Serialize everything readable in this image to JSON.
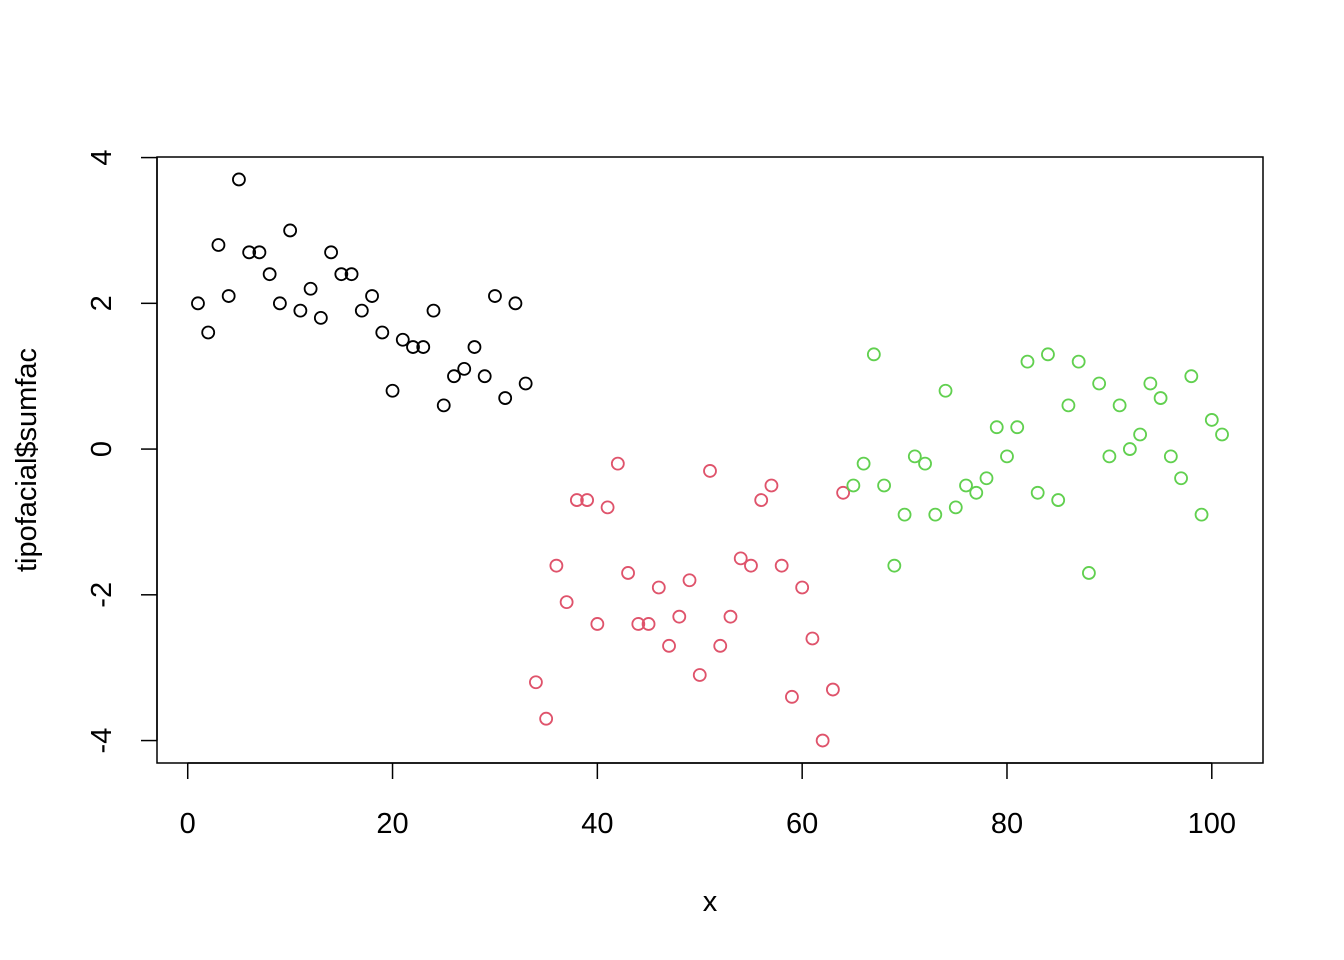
{
  "chart_data": {
    "type": "scatter",
    "title": "",
    "xlabel": "x",
    "ylabel": "tipofacial$sumfac",
    "xlim": [
      -3,
      105
    ],
    "ylim": [
      -4.308,
      4.008
    ],
    "xticks": [
      0,
      20,
      40,
      60,
      80,
      100
    ],
    "yticks": [
      -4,
      -2,
      0,
      2,
      4
    ],
    "grid": false,
    "marker": "open-circle",
    "series": [
      {
        "color": "#000000",
        "x": [
          1,
          2,
          3,
          4,
          5,
          6,
          7,
          8,
          9,
          10,
          11,
          12,
          13,
          14,
          15,
          16,
          17,
          18,
          19,
          20,
          21,
          22,
          23,
          24,
          25,
          26,
          27,
          28,
          29,
          30,
          31,
          32,
          33
        ],
        "y": [
          2.0,
          1.6,
          2.8,
          2.1,
          3.7,
          2.7,
          2.7,
          2.4,
          2.0,
          3.0,
          1.9,
          2.2,
          1.8,
          2.7,
          2.4,
          2.4,
          1.9,
          2.1,
          1.6,
          0.8,
          1.5,
          1.4,
          1.4,
          1.9,
          0.6,
          1.0,
          1.1,
          1.4,
          1.0,
          2.1,
          0.7,
          2.0,
          0.9
        ]
      },
      {
        "color": "#DF536B",
        "x": [
          34,
          35,
          36,
          37,
          38,
          39,
          40,
          41,
          42,
          43,
          44,
          45,
          46,
          47,
          48,
          49,
          50,
          51,
          52,
          53,
          54,
          55,
          56,
          57,
          58,
          59,
          60,
          61,
          62,
          63,
          64
        ],
        "y": [
          -3.2,
          -3.7,
          -1.6,
          -2.1,
          -0.7,
          -0.7,
          -2.4,
          -0.8,
          -0.2,
          -1.7,
          -2.4,
          -2.4,
          -1.9,
          -2.7,
          -2.3,
          -1.8,
          -3.1,
          -0.3,
          -2.7,
          -2.3,
          -1.5,
          -1.6,
          -0.7,
          -0.5,
          -1.6,
          -3.4,
          -1.9,
          -2.6,
          -4.0,
          -3.3,
          -0.6
        ]
      },
      {
        "color": "#61D04F",
        "x": [
          65,
          66,
          67,
          68,
          69,
          70,
          71,
          72,
          73,
          74,
          75,
          76,
          77,
          78,
          79,
          80,
          81,
          82,
          83,
          84,
          85,
          86,
          87,
          88,
          89,
          90,
          91,
          92,
          93,
          94,
          95,
          96,
          97,
          98,
          99,
          100,
          101
        ],
        "y": [
          -0.5,
          -0.2,
          1.3,
          -0.5,
          -1.6,
          -0.9,
          -0.1,
          -0.2,
          -0.9,
          0.8,
          -0.8,
          -0.5,
          -0.6,
          -0.4,
          0.3,
          -0.1,
          0.3,
          1.2,
          -0.6,
          1.3,
          -0.7,
          0.6,
          1.2,
          -1.7,
          0.9,
          -0.1,
          0.6,
          0.0,
          0.2,
          0.9,
          0.7,
          -0.1,
          -0.4,
          1.0,
          -0.9,
          0.4,
          0.2
        ]
      }
    ]
  }
}
